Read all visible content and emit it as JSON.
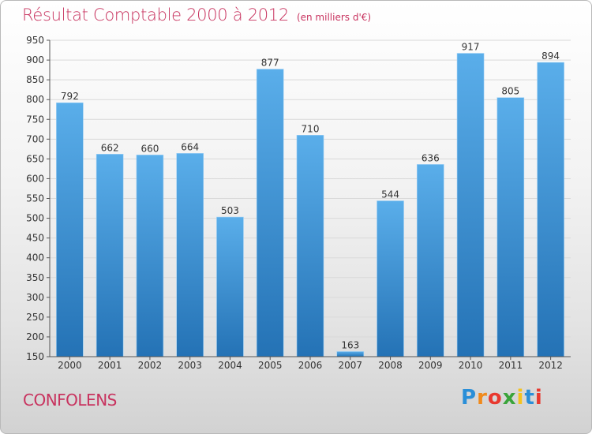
{
  "header": {
    "title": "Résultat Comptable 2000 à 2012",
    "subtitle": "(en milliers d'€)"
  },
  "footer": {
    "city": "CONFOLENS",
    "logo_letters": [
      "P",
      "r",
      "o",
      "x",
      "i",
      "t",
      "i"
    ],
    "logo_colors": [
      "#2a8fd8",
      "#f08a1c",
      "#e8392f",
      "#3aa43a",
      "#f4c21f",
      "#2a8fd8",
      "#e8392f"
    ]
  },
  "chart_data": {
    "type": "bar",
    "categories": [
      "2000",
      "2001",
      "2002",
      "2003",
      "2004",
      "2005",
      "2006",
      "2007",
      "2008",
      "2009",
      "2010",
      "2011",
      "2012"
    ],
    "values": [
      792,
      662,
      660,
      664,
      503,
      877,
      710,
      163,
      544,
      636,
      917,
      805,
      894
    ],
    "data_labels": [
      "792",
      "662",
      "660",
      "664",
      "503",
      "877",
      "710",
      "163",
      "544",
      "636",
      "917",
      "805",
      "894"
    ],
    "title": "Résultat Comptable 2000 à 2012",
    "subtitle": "(en milliers d'€)",
    "ylim": [
      150,
      950
    ],
    "yticks": [
      150,
      200,
      250,
      300,
      350,
      400,
      450,
      500,
      550,
      600,
      650,
      700,
      750,
      800,
      850,
      900,
      950
    ],
    "ytick_labels": [
      "150",
      "200",
      "250",
      "300",
      "350",
      "400",
      "450",
      "500",
      "550",
      "600",
      "650",
      "700",
      "750",
      "800",
      "850",
      "900",
      "950"
    ],
    "grid": true,
    "colors": {
      "bar_top": "#5aaeea",
      "bar_bottom": "#2472b5",
      "grid": "#d9d9d9",
      "text": "#333333",
      "accent": "#c8335f"
    }
  }
}
